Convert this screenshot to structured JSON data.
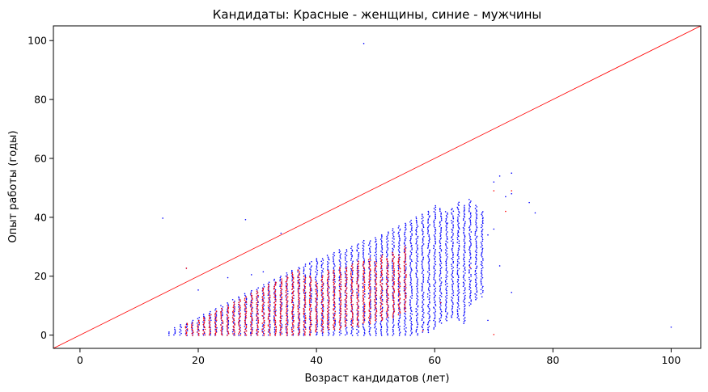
{
  "chart_data": {
    "type": "scatter",
    "title": "Кандидаты: Красные - женщины, синие - мужчины",
    "xlabel": "Возраст кандидатов (лет)",
    "ylabel": "Опыт работы (годы)",
    "xlim": [
      -4.5,
      105
    ],
    "ylim": [
      -4.5,
      105
    ],
    "x_ticks": [
      0,
      20,
      40,
      60,
      80,
      100
    ],
    "y_ticks": [
      0,
      20,
      40,
      60,
      80,
      100
    ],
    "grid": false,
    "legend": "none",
    "series": [
      {
        "color": "#0000ff",
        "bands": [
          [
            15,
            0,
            1
          ],
          [
            16,
            0,
            2
          ],
          [
            17,
            0,
            3
          ],
          [
            18,
            0,
            4
          ],
          [
            19,
            0,
            5
          ],
          [
            20,
            0,
            6
          ],
          [
            21,
            0,
            7
          ],
          [
            22,
            0,
            8
          ],
          [
            23,
            0,
            9
          ],
          [
            24,
            0,
            10
          ],
          [
            25,
            0,
            11
          ],
          [
            26,
            0,
            12
          ],
          [
            27,
            0,
            13
          ],
          [
            28,
            0,
            14
          ],
          [
            29,
            0,
            15
          ],
          [
            30,
            0,
            16
          ],
          [
            31,
            0,
            17
          ],
          [
            32,
            0,
            18
          ],
          [
            33,
            0,
            19
          ],
          [
            34,
            0,
            20
          ],
          [
            35,
            0,
            21
          ],
          [
            36,
            0,
            22
          ],
          [
            37,
            0,
            23
          ],
          [
            38,
            0,
            24
          ],
          [
            39,
            0,
            25
          ],
          [
            40,
            0,
            26
          ],
          [
            41,
            0,
            26
          ],
          [
            42,
            0,
            27
          ],
          [
            43,
            0,
            28
          ],
          [
            44,
            0,
            29
          ],
          [
            45,
            0,
            29
          ],
          [
            46,
            0,
            30
          ],
          [
            47,
            0,
            31
          ],
          [
            48,
            0,
            32
          ],
          [
            49,
            0,
            32
          ],
          [
            50,
            0,
            33
          ],
          [
            51,
            0,
            34
          ],
          [
            52,
            0,
            35
          ],
          [
            53,
            0,
            36
          ],
          [
            54,
            0,
            37
          ],
          [
            55,
            0,
            38
          ],
          [
            56,
            0,
            39
          ],
          [
            57,
            0,
            40
          ],
          [
            58,
            1,
            41
          ],
          [
            59,
            1,
            42
          ],
          [
            60,
            2,
            44
          ],
          [
            61,
            4,
            43
          ],
          [
            62,
            5,
            42
          ],
          [
            63,
            6,
            43
          ],
          [
            64,
            5,
            45
          ],
          [
            65,
            4,
            44
          ],
          [
            66,
            10,
            46
          ],
          [
            67,
            12,
            44
          ],
          [
            68,
            14,
            42
          ]
        ],
        "outliers": [
          [
            14,
            39.7
          ],
          [
            28,
            39.2
          ],
          [
            34,
            34.6
          ],
          [
            48,
            99
          ],
          [
            100,
            2.7
          ],
          [
            70,
            52
          ],
          [
            71,
            54
          ],
          [
            72,
            47
          ],
          [
            73,
            55
          ],
          [
            73,
            48
          ],
          [
            76,
            45
          ],
          [
            77,
            41.5
          ],
          [
            69,
            34
          ],
          [
            70,
            36
          ],
          [
            71,
            23.5
          ],
          [
            73,
            14.5
          ],
          [
            68,
            13
          ],
          [
            69,
            5
          ],
          [
            18,
            22.7
          ],
          [
            20,
            15.3
          ],
          [
            25,
            19.5
          ],
          [
            29,
            20.5
          ],
          [
            31,
            21.5
          ],
          [
            36,
            17
          ],
          [
            16,
            2.5
          ],
          [
            17,
            3.5
          ],
          [
            66,
            30
          ],
          [
            64,
            35
          ],
          [
            62,
            38
          ]
        ]
      },
      {
        "color": "#ff0000",
        "bands": [
          [
            18,
            0,
            4
          ],
          [
            19,
            0,
            4
          ],
          [
            20,
            0,
            5
          ],
          [
            21,
            0,
            6
          ],
          [
            22,
            0,
            7
          ],
          [
            23,
            0,
            8
          ],
          [
            24,
            0,
            9
          ],
          [
            25,
            0,
            10
          ],
          [
            26,
            0,
            11
          ],
          [
            27,
            0,
            12
          ],
          [
            28,
            0,
            13
          ],
          [
            29,
            0,
            14
          ],
          [
            30,
            0,
            15
          ],
          [
            31,
            0,
            16
          ],
          [
            32,
            0,
            17
          ],
          [
            33,
            0,
            18
          ],
          [
            34,
            0,
            19
          ],
          [
            35,
            0,
            20
          ],
          [
            36,
            0,
            21
          ],
          [
            37,
            0,
            22
          ],
          [
            38,
            0,
            20
          ],
          [
            39,
            0,
            20
          ],
          [
            40,
            1,
            18
          ],
          [
            41,
            1,
            20
          ],
          [
            42,
            2,
            22
          ],
          [
            43,
            2,
            22
          ],
          [
            44,
            2,
            23
          ],
          [
            45,
            3,
            23
          ],
          [
            46,
            3,
            24
          ],
          [
            47,
            3,
            25
          ],
          [
            48,
            4,
            25
          ],
          [
            49,
            4,
            26
          ],
          [
            50,
            5,
            25
          ],
          [
            51,
            5,
            27
          ],
          [
            52,
            6,
            26
          ],
          [
            53,
            6,
            28
          ],
          [
            54,
            7,
            27
          ],
          [
            55,
            8,
            30
          ]
        ],
        "outliers": [
          [
            70,
            0.2
          ],
          [
            72,
            42
          ],
          [
            73,
            49
          ],
          [
            70,
            49
          ],
          [
            18,
            22.7
          ],
          [
            58,
            1.5
          ],
          [
            61,
            11
          ],
          [
            66,
            23
          ]
        ]
      }
    ],
    "reference_line": {
      "color": "#ff0000",
      "from": [
        -4.5,
        -4.5
      ],
      "to": [
        105,
        105
      ]
    }
  }
}
